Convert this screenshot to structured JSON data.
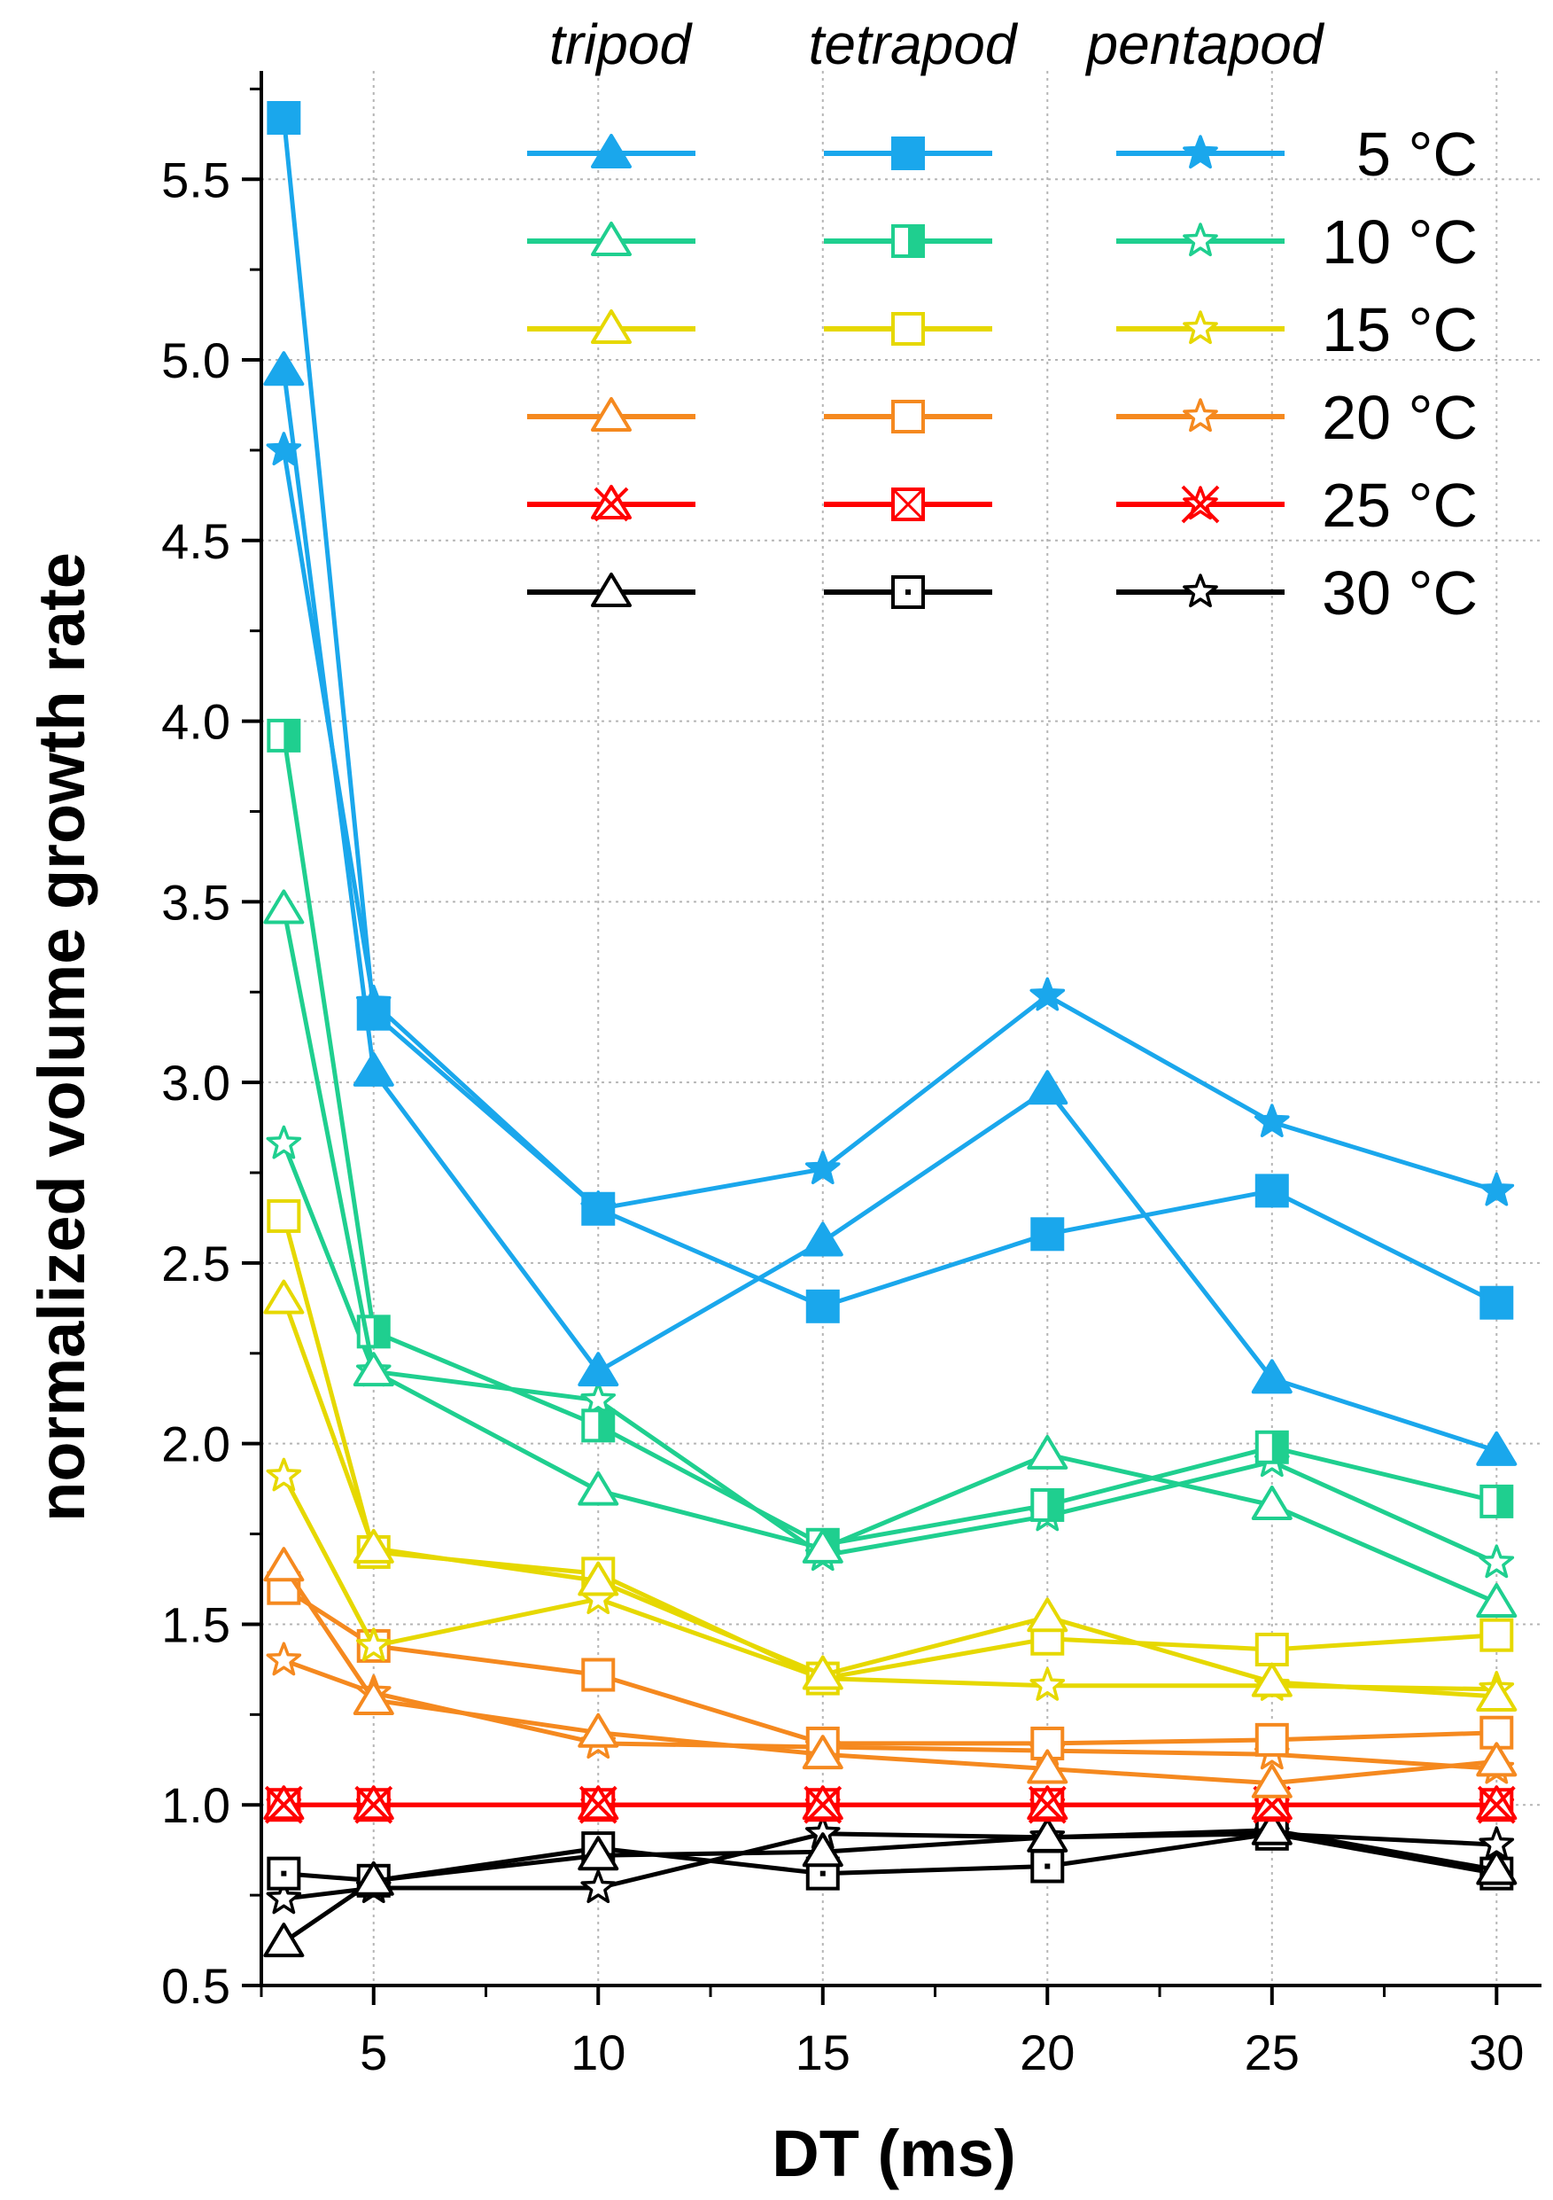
{
  "chart_data": {
    "type": "line",
    "title": "",
    "xlabel": "DT (ms)",
    "ylabel": "normalized volume growth rate",
    "xlim": [
      2.5,
      31
    ],
    "ylim": [
      0.5,
      5.8
    ],
    "x_ticks": [
      "5",
      "10",
      "15",
      "20",
      "25",
      "30"
    ],
    "y_ticks": [
      "0.5",
      "1.0",
      "1.5",
      "2.0",
      "2.5",
      "3.0",
      "3.5",
      "4.0",
      "4.5",
      "5.0",
      "5.5"
    ],
    "grid": "vertical and horizontal dotted gridlines",
    "x": [
      3,
      5,
      10,
      15,
      20,
      25,
      30
    ],
    "legend": {
      "position": "top-right",
      "column_headers": [
        "tripod",
        "tetrapod",
        "pentapod"
      ],
      "temperature_labels": [
        "5 °C",
        "10 °C",
        "15 °C",
        "20 °C",
        "25 °C",
        "30 °C"
      ]
    },
    "colors": {
      "5 °C": "#1aa7ec",
      "10 °C": "#1fcf8f",
      "15 °C": "#e6d800",
      "20 °C": "#f5891f",
      "25 °C": "#ff0000",
      "30 °C": "#000000"
    },
    "series": [
      {
        "name": "tripod 5 °C",
        "structure": "tripod",
        "temperature": "5 °C",
        "marker": "triangle",
        "values": [
          4.97,
          3.03,
          2.2,
          2.56,
          2.98,
          2.18,
          1.98
        ]
      },
      {
        "name": "tetrapod 5 °C",
        "structure": "tetrapod",
        "temperature": "5 °C",
        "marker": "square",
        "values": [
          5.67,
          3.19,
          2.65,
          2.38,
          2.58,
          2.7,
          2.39
        ]
      },
      {
        "name": "pentapod 5 °C",
        "structure": "pentapod",
        "temperature": "5 °C",
        "marker": "star",
        "values": [
          4.75,
          3.22,
          2.65,
          2.76,
          3.24,
          2.89,
          2.7
        ]
      },
      {
        "name": "tripod 10 °C",
        "structure": "tripod",
        "temperature": "10 °C",
        "marker": "triangle",
        "values": [
          3.48,
          2.2,
          1.87,
          1.71,
          1.97,
          1.83,
          1.56
        ]
      },
      {
        "name": "tetrapod 10 °C",
        "structure": "tetrapod",
        "temperature": "10 °C",
        "marker": "square",
        "values": [
          3.96,
          2.31,
          2.05,
          1.72,
          1.83,
          1.99,
          1.84
        ]
      },
      {
        "name": "pentapod 10 °C",
        "structure": "pentapod",
        "temperature": "10 °C",
        "marker": "star",
        "values": [
          2.83,
          2.2,
          2.12,
          1.69,
          1.8,
          1.95,
          1.67
        ]
      },
      {
        "name": "tripod 15 °C",
        "structure": "tripod",
        "temperature": "15 °C",
        "marker": "triangle",
        "values": [
          2.4,
          1.71,
          1.62,
          1.36,
          1.52,
          1.34,
          1.3
        ]
      },
      {
        "name": "tetrapod 15 °C",
        "structure": "tetrapod",
        "temperature": "15 °C",
        "marker": "square",
        "values": [
          2.63,
          1.7,
          1.64,
          1.35,
          1.46,
          1.43,
          1.47
        ]
      },
      {
        "name": "pentapod 15 °C",
        "structure": "pentapod",
        "temperature": "15 °C",
        "marker": "star",
        "values": [
          1.91,
          1.44,
          1.57,
          1.35,
          1.33,
          1.33,
          1.32
        ]
      },
      {
        "name": "tripod 20 °C",
        "structure": "tripod",
        "temperature": "20 °C",
        "marker": "triangle",
        "values": [
          1.66,
          1.29,
          1.2,
          1.14,
          1.1,
          1.06,
          1.12
        ]
      },
      {
        "name": "tetrapod 20 °C",
        "structure": "tetrapod",
        "temperature": "20 °C",
        "marker": "square",
        "values": [
          1.6,
          1.44,
          1.36,
          1.17,
          1.17,
          1.18,
          1.2
        ]
      },
      {
        "name": "pentapod 20 °C",
        "structure": "pentapod",
        "temperature": "20 °C",
        "marker": "star",
        "values": [
          1.4,
          1.31,
          1.17,
          1.16,
          1.15,
          1.14,
          1.1
        ]
      },
      {
        "name": "tripod 25 °C",
        "structure": "tripod",
        "temperature": "25 °C",
        "marker": "triangle",
        "values": [
          1.0,
          1.0,
          1.0,
          1.0,
          1.0,
          1.0,
          1.0
        ]
      },
      {
        "name": "tetrapod 25 °C",
        "structure": "tetrapod",
        "temperature": "25 °C",
        "marker": "square",
        "values": [
          1.0,
          1.0,
          1.0,
          1.0,
          1.0,
          1.0,
          1.0
        ]
      },
      {
        "name": "pentapod 25 °C",
        "structure": "pentapod",
        "temperature": "25 °C",
        "marker": "star",
        "values": [
          1.0,
          1.0,
          1.0,
          1.0,
          1.0,
          1.0,
          1.0
        ]
      },
      {
        "name": "tripod 30 °C",
        "structure": "tripod",
        "temperature": "30 °C",
        "marker": "triangle",
        "values": [
          0.62,
          0.79,
          0.86,
          0.87,
          0.91,
          0.93,
          0.82
        ]
      },
      {
        "name": "tetrapod 30 °C",
        "structure": "tetrapod",
        "temperature": "30 °C",
        "marker": "square",
        "values": [
          0.81,
          0.79,
          0.88,
          0.81,
          0.83,
          0.92,
          0.81
        ]
      },
      {
        "name": "pentapod 30 °C",
        "structure": "pentapod",
        "temperature": "30 °C",
        "marker": "star",
        "values": [
          0.74,
          0.77,
          0.77,
          0.92,
          0.91,
          0.92,
          0.89
        ]
      }
    ]
  }
}
